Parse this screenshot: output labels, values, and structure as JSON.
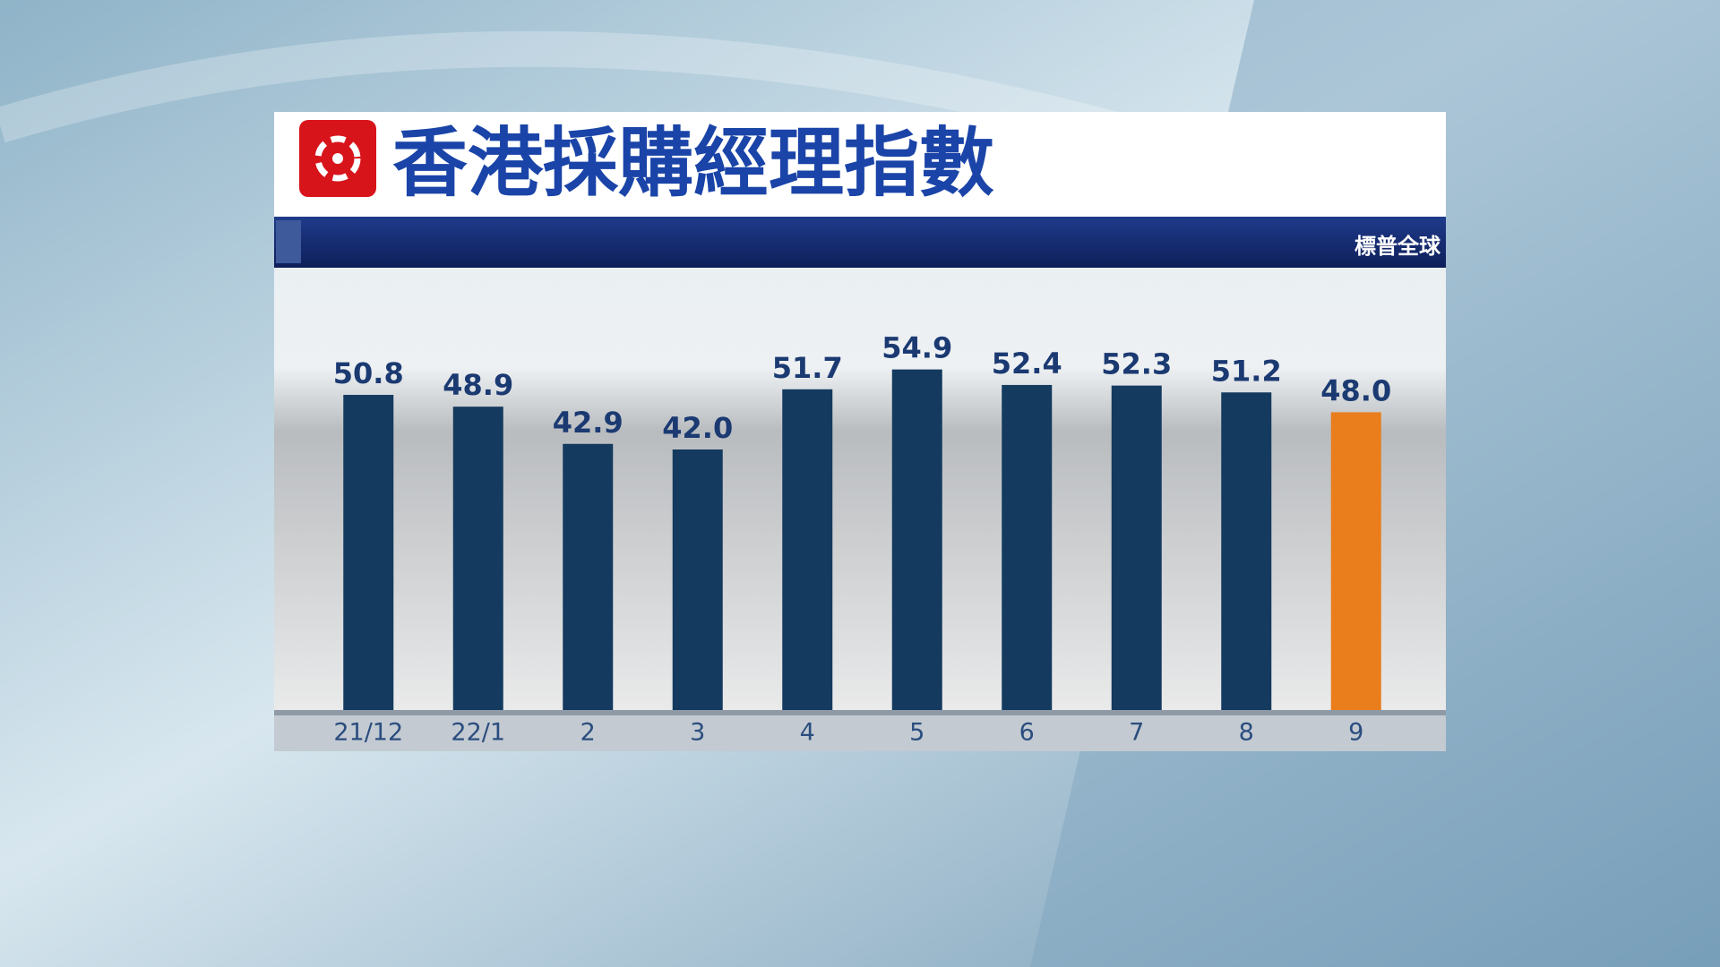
{
  "chart_data": {
    "type": "bar",
    "title": "香港採購經理指數",
    "source": "標普全球",
    "categories": [
      "21/12",
      "22/1",
      "2",
      "3",
      "4",
      "5",
      "6",
      "7",
      "8",
      "9"
    ],
    "values": [
      50.8,
      48.9,
      42.9,
      42.0,
      51.7,
      54.9,
      52.4,
      52.3,
      51.2,
      48.0
    ],
    "value_labels": [
      "50.8",
      "48.9",
      "42.9",
      "42.0",
      "51.7",
      "54.9",
      "52.4",
      "52.3",
      "51.2",
      "48.0"
    ],
    "colors": [
      "#143a5f",
      "#143a5f",
      "#143a5f",
      "#143a5f",
      "#143a5f",
      "#143a5f",
      "#143a5f",
      "#143a5f",
      "#143a5f",
      "#ea7d1c"
    ],
    "ylim": [
      0,
      70
    ]
  }
}
